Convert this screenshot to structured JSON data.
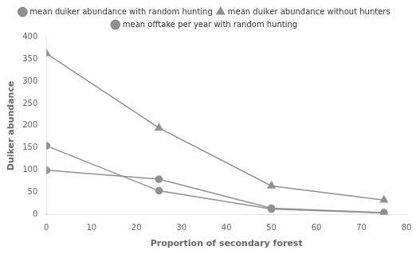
{
  "chart_data": {
    "type": "line",
    "x": [
      0,
      25,
      50,
      75
    ],
    "series": [
      {
        "name": "mean duiker abundance with random hunting",
        "color": "#909090",
        "marker": "circle",
        "values": [
          100,
          80,
          15,
          5
        ]
      },
      {
        "name": "mean duiker abundance without hunters",
        "color": "#909090",
        "marker": "triangle",
        "values": [
          362,
          195,
          65,
          33
        ]
      },
      {
        "name": "mean offtake per year with random hunting",
        "color": "#909090",
        "marker": "circle",
        "values": [
          155,
          54,
          13,
          4
        ]
      }
    ],
    "xlabel": "Proportion of secondary forest",
    "ylabel": "Duiker abundance",
    "xlim": [
      0,
      80
    ],
    "xticks": [
      0,
      10,
      20,
      30,
      40,
      50,
      60,
      70,
      80
    ],
    "ylim": [
      0,
      400
    ],
    "yticks": [
      0,
      50,
      100,
      150,
      200,
      250,
      300,
      350,
      400
    ],
    "grid": false,
    "legend": "top"
  }
}
